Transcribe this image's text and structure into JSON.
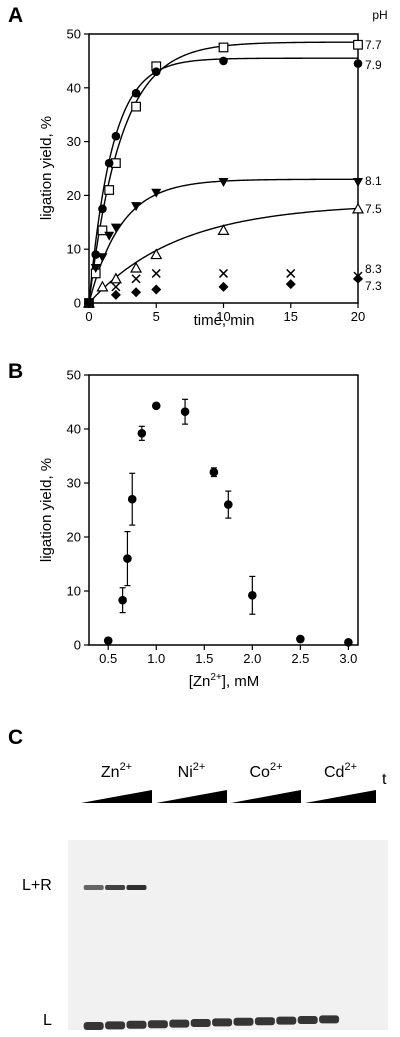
{
  "panels": {
    "a": "A",
    "b": "B",
    "c": "C"
  },
  "chart_data": [
    {
      "type": "scatter",
      "panel": "A",
      "xlabel": "time, min",
      "ylabel": "ligation yield, %",
      "xlim": [
        0,
        20
      ],
      "ylim": [
        0,
        50
      ],
      "x_ticks": [
        0,
        5,
        10,
        15,
        20
      ],
      "y_ticks": [
        0,
        10,
        20,
        30,
        40,
        50
      ],
      "legend_title": "pH",
      "series": [
        {
          "name": "7.7",
          "marker": "open-square",
          "fit": {
            "amplitude": 48.5,
            "k": 0.42
          },
          "x": [
            0,
            0.5,
            1,
            1.5,
            2,
            3.5,
            5,
            10,
            20
          ],
          "y": [
            0,
            5.5,
            13.5,
            21,
            26,
            36.5,
            44,
            47.5,
            48
          ]
        },
        {
          "name": "7.9",
          "marker": "filled-circle",
          "fit": {
            "amplitude": 45.5,
            "k": 0.58
          },
          "x": [
            0,
            0.5,
            1,
            1.5,
            2,
            3.5,
            5,
            10,
            20
          ],
          "y": [
            0,
            9,
            17.5,
            26,
            31,
            39,
            43,
            45,
            44.5
          ]
        },
        {
          "name": "8.1",
          "marker": "filled-triangle-down",
          "fit": {
            "amplitude": 23,
            "k": 0.42
          },
          "x": [
            0,
            0.5,
            1,
            1.5,
            2,
            3.5,
            5,
            10,
            20
          ],
          "y": [
            0,
            6.5,
            8.5,
            12.5,
            14,
            18,
            20.5,
            22.5,
            22.5
          ]
        },
        {
          "name": "7.5",
          "marker": "open-triangle",
          "fit": {
            "amplitude": 18.5,
            "k": 0.15
          },
          "x": [
            0,
            1,
            2,
            3.5,
            5,
            10,
            20
          ],
          "y": [
            0,
            3,
            4.5,
            6.5,
            9,
            13.5,
            17.5
          ]
        },
        {
          "name": "8.3",
          "marker": "cross",
          "fit": null,
          "x": [
            0,
            2,
            3.5,
            5,
            10,
            15,
            20
          ],
          "y": [
            0,
            3,
            4.5,
            5.5,
            5.5,
            5.5,
            5
          ]
        },
        {
          "name": "7.3",
          "marker": "filled-diamond",
          "fit": null,
          "x": [
            0,
            2,
            3.5,
            5,
            10,
            15,
            20
          ],
          "y": [
            0,
            1.5,
            2,
            2.5,
            3,
            3.5,
            4.5
          ]
        }
      ]
    },
    {
      "type": "scatter",
      "panel": "B",
      "xlabel_base": "[Zn",
      "xlabel_sup": "2+",
      "xlabel_end": "], mM",
      "ylabel": "ligation yield, %",
      "xlim": [
        0.3,
        3.1
      ],
      "ylim": [
        0,
        50
      ],
      "x_ticks": [
        "0.5",
        "1.0",
        "1.5",
        "2.0",
        "2.5",
        "3.0"
      ],
      "y_ticks": [
        0,
        10,
        20,
        30,
        40,
        50
      ],
      "points": [
        {
          "x": 0.5,
          "y": 0.8,
          "err": 0
        },
        {
          "x": 0.65,
          "y": 8.3,
          "err": 2.3
        },
        {
          "x": 0.7,
          "y": 16,
          "err": 5
        },
        {
          "x": 0.75,
          "y": 27,
          "err": 4.8
        },
        {
          "x": 0.85,
          "y": 39.2,
          "err": 1.3
        },
        {
          "x": 1.0,
          "y": 44.3,
          "err": 0
        },
        {
          "x": 1.3,
          "y": 43.2,
          "err": 2.3
        },
        {
          "x": 1.6,
          "y": 32,
          "err": 0.8
        },
        {
          "x": 1.75,
          "y": 26,
          "err": 2.5
        },
        {
          "x": 2.0,
          "y": 9.2,
          "err": 3.5
        },
        {
          "x": 2.5,
          "y": 1.1,
          "err": 0
        },
        {
          "x": 3.0,
          "y": 0.5,
          "err": 0
        }
      ]
    }
  ],
  "gel": {
    "ions": [
      {
        "base": "Zn",
        "charge": "2+"
      },
      {
        "base": "Ni",
        "charge": "2+"
      },
      {
        "base": "Co",
        "charge": "2+"
      },
      {
        "base": "Cd",
        "charge": "2+"
      }
    ],
    "time_label": "t",
    "product_label": "L+R",
    "substrate_label": "L",
    "product_lane_intensity": [
      0.55,
      0.85,
      1.0,
      0,
      0,
      0,
      0,
      0,
      0,
      0,
      0,
      0
    ]
  },
  "colors": {
    "ink": "#000000",
    "gel_background": "#f1f1f1",
    "band": "#1a1a1a"
  }
}
